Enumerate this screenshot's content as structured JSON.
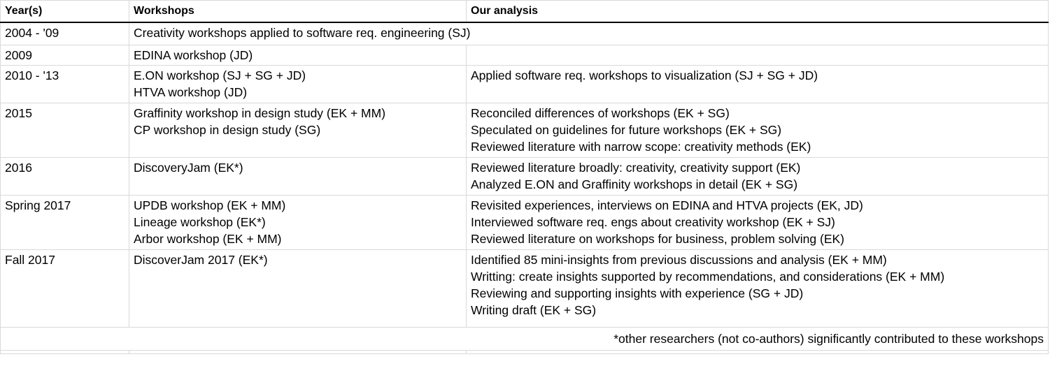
{
  "headers": {
    "years": "Year(s)",
    "workshops": "Workshops",
    "analysis": "Our analysis"
  },
  "rows": [
    {
      "year": "2004 - '09",
      "span": "Creativity workshops applied to software req. engineering (SJ)"
    },
    {
      "year": "2009",
      "workshops": [
        "EDINA workshop (JD)"
      ],
      "analysis": []
    },
    {
      "year": "2010 - '13",
      "workshops": [
        "E.ON workshop (SJ + SG + JD)",
        "HTVA workshop (JD)"
      ],
      "analysis": [
        "Applied software req. workshops to visualization (SJ + SG + JD)"
      ]
    },
    {
      "year": "2015",
      "workshops": [
        "Graffinity workshop in design study (EK + MM)",
        "CP workshop in design study (SG)"
      ],
      "analysis": [
        "Reconciled differences of workshops (EK + SG)",
        "Speculated on guidelines for future workshops (EK + SG)",
        "Reviewed literature with narrow scope: creativity methods (EK)"
      ]
    },
    {
      "year": "2016",
      "workshops": [
        "DiscoveryJam (EK*)"
      ],
      "analysis": [
        "Reviewed literature broadly: creativity, creativity support (EK)",
        "Analyzed E.ON and Graffinity workshops in detail (EK + SG)"
      ]
    },
    {
      "year": "Spring 2017",
      "workshops": [
        "UPDB workshop (EK + MM)",
        "Lineage workshop (EK*)",
        "Arbor workshop (EK + MM)"
      ],
      "analysis": [
        "Revisited experiences, interviews on EDINA and HTVA projects (EK, JD)",
        "Interviewed software req. engs about creativity workshop (EK + SJ)",
        "Reviewed literature on workshops for business, problem solving (EK)"
      ]
    },
    {
      "year": "Fall 2017",
      "workshops": [
        "DiscoverJam 2017 (EK*)"
      ],
      "analysis": [
        "Identified 85 mini-insights from previous discussions and analysis (EK + MM)",
        "Writting: create insights supported by  recommendations, and considerations (EK + MM)",
        "Reviewing and supporting insights with experience (SG + JD)",
        "Writing draft (EK + SG)"
      ]
    }
  ],
  "footnote": "*other researchers (not co-authors) significantly contributed to these workshops"
}
